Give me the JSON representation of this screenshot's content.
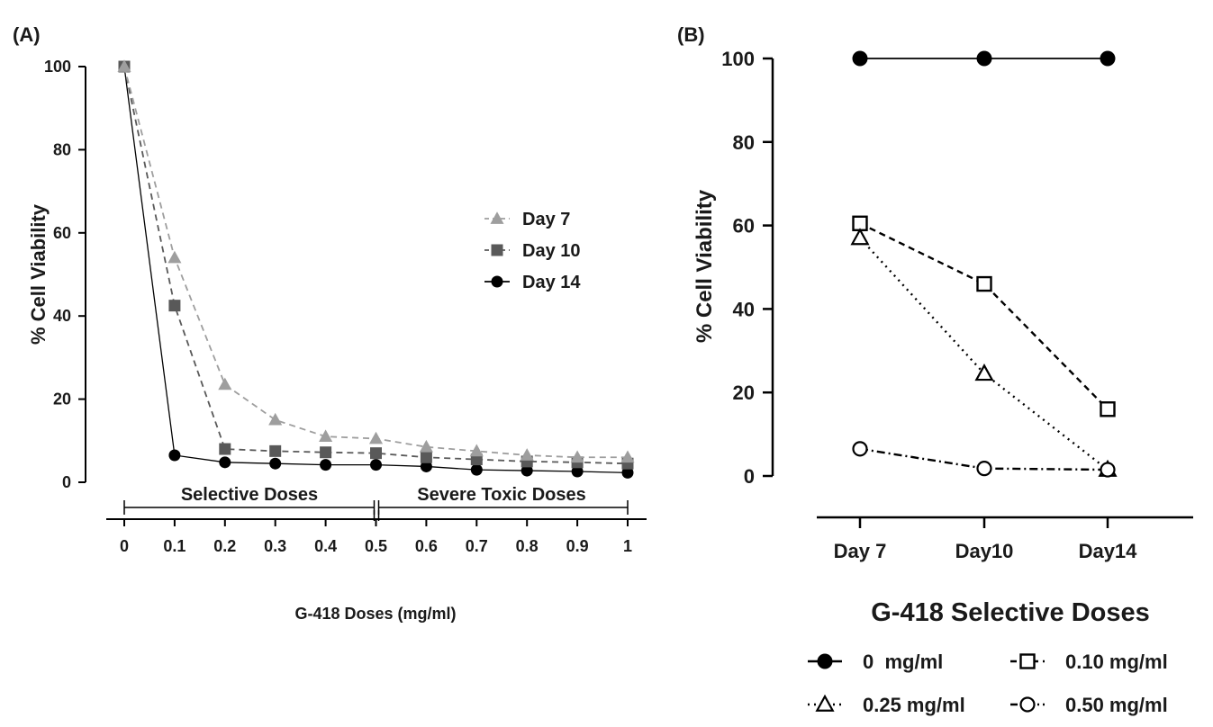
{
  "chart_data": [
    {
      "panel_label": "(A)",
      "type": "line",
      "xlabel": "G-418 Doses (mg/ml)",
      "ylabel": "% Cell Viability",
      "xlim": [
        0,
        1
      ],
      "ylim": [
        0,
        100
      ],
      "x_ticks": [
        "0",
        "0.1",
        "0.2",
        "0.3",
        "0.4",
        "0.5",
        "0.6",
        "0.7",
        "0.8",
        "0.9",
        "1"
      ],
      "y_ticks": [
        "0",
        "20",
        "40",
        "60",
        "80",
        "100"
      ],
      "x": [
        0,
        0.1,
        0.2,
        0.3,
        0.4,
        0.5,
        0.6,
        0.7,
        0.8,
        0.9,
        1
      ],
      "legend_position": "right",
      "regions": [
        {
          "label": "Selective Doses",
          "from": 0,
          "to": 0.5
        },
        {
          "label": "Severe Toxic Doses",
          "from": 0.5,
          "to": 1
        }
      ],
      "series": [
        {
          "name": "Day 7",
          "marker": "triangle",
          "color": "#9e9e9e",
          "dash": "dashed",
          "values": [
            100,
            54,
            23.5,
            15,
            11,
            10.5,
            8.5,
            7.5,
            6.5,
            6,
            6
          ]
        },
        {
          "name": "Day 10",
          "marker": "square",
          "color": "#595959",
          "dash": "dashed",
          "values": [
            100,
            42.5,
            8,
            7.5,
            7.2,
            7,
            6,
            5.5,
            5,
            4.8,
            4.5
          ]
        },
        {
          "name": "Day 14",
          "marker": "circle",
          "color": "#000000",
          "dash": "solid",
          "values": [
            100,
            6.5,
            4.8,
            4.5,
            4.2,
            4.2,
            3.8,
            3,
            2.8,
            2.6,
            2.3
          ]
        }
      ]
    },
    {
      "panel_label": "(B)",
      "type": "line",
      "xlabel": "G-418 Selective Doses",
      "ylabel": "% Cell Viability",
      "ylim": [
        0,
        100
      ],
      "categories": [
        "Day 7",
        "Day10",
        "Day14"
      ],
      "y_ticks": [
        "0",
        "20",
        "40",
        "60",
        "80",
        "100"
      ],
      "legend_position": "bottom",
      "series": [
        {
          "name": "0  mg/ml",
          "marker": "filled-circle",
          "dash": "solid",
          "values": [
            100,
            100,
            100
          ]
        },
        {
          "name": "0.10 mg/ml",
          "marker": "open-square",
          "dash": "dashed",
          "values": [
            60.5,
            46,
            16
          ]
        },
        {
          "name": "0.25 mg/ml",
          "marker": "open-triangle",
          "dash": "dotted",
          "values": [
            57,
            24.5,
            1.5
          ]
        },
        {
          "name": "0.50 mg/ml",
          "marker": "open-circle",
          "dash": "dash-dot",
          "values": [
            6.5,
            1.8,
            1.5
          ]
        }
      ]
    }
  ]
}
